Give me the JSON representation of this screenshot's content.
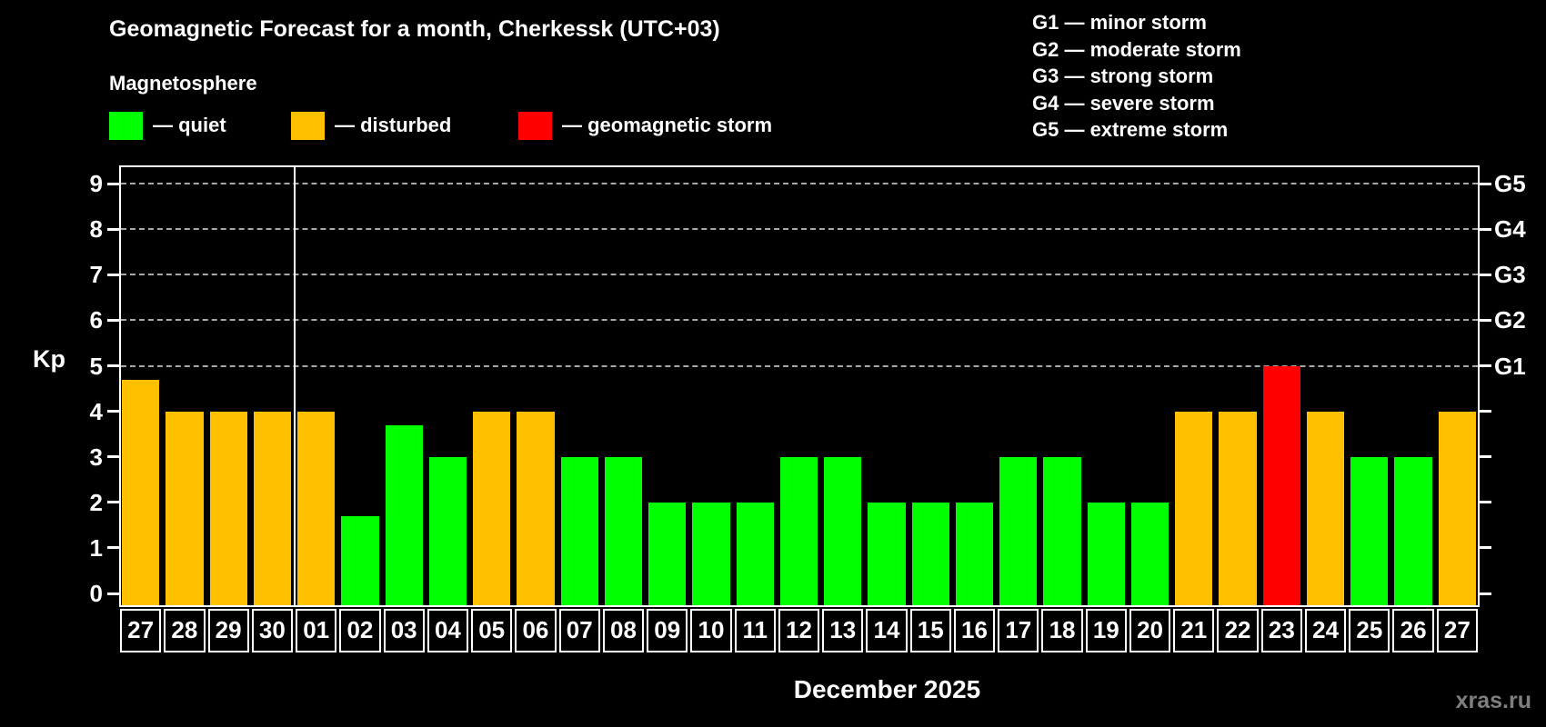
{
  "header": {
    "title": "Geomagnetic Forecast for a month, Cherkessk (UTC+03)",
    "subtitle": "Magnetosphere",
    "legend": [
      {
        "label": "— quiet",
        "color_key": "quiet"
      },
      {
        "label": "— disturbed",
        "color_key": "disturbed"
      },
      {
        "label": "— geomagnetic storm",
        "color_key": "storm"
      }
    ],
    "g_scale_legend": [
      "G1 — minor storm",
      "G2 — moderate storm",
      "G3 — strong storm",
      "G4 — severe storm",
      "G5 — extreme storm"
    ]
  },
  "colors": {
    "quiet": "#00ff00",
    "disturbed": "#ffc000",
    "storm": "#ff0000",
    "gridline": "#a8a8a8",
    "watermark": "#7f7f7f"
  },
  "chart_data": {
    "type": "bar",
    "title": "Geomagnetic Forecast for a month, Cherkessk (UTC+03)",
    "ylabel": "Kp",
    "xlabel": "December 2025",
    "ylim": [
      0,
      9
    ],
    "yticks": [
      0,
      1,
      2,
      3,
      4,
      5,
      6,
      7,
      8,
      9
    ],
    "grid": "dashed horizontal at Kp 5-9 only",
    "right_axis_labels": [
      {
        "label": "G1",
        "kp": 5
      },
      {
        "label": "G2",
        "kp": 6
      },
      {
        "label": "G3",
        "kp": 7
      },
      {
        "label": "G4",
        "kp": 8
      },
      {
        "label": "G5",
        "kp": 9
      }
    ],
    "month_separator_after_index": 3,
    "days": [
      {
        "day": "27",
        "kp": 4.7,
        "status": "disturbed"
      },
      {
        "day": "28",
        "kp": 4,
        "status": "disturbed"
      },
      {
        "day": "29",
        "kp": 4,
        "status": "disturbed"
      },
      {
        "day": "30",
        "kp": 4,
        "status": "disturbed"
      },
      {
        "day": "01",
        "kp": 4,
        "status": "disturbed"
      },
      {
        "day": "02",
        "kp": 1.7,
        "status": "quiet"
      },
      {
        "day": "03",
        "kp": 3.7,
        "status": "quiet"
      },
      {
        "day": "04",
        "kp": 3,
        "status": "quiet"
      },
      {
        "day": "05",
        "kp": 4,
        "status": "disturbed"
      },
      {
        "day": "06",
        "kp": 4,
        "status": "disturbed"
      },
      {
        "day": "07",
        "kp": 3,
        "status": "quiet"
      },
      {
        "day": "08",
        "kp": 3,
        "status": "quiet"
      },
      {
        "day": "09",
        "kp": 2,
        "status": "quiet"
      },
      {
        "day": "10",
        "kp": 2,
        "status": "quiet"
      },
      {
        "day": "11",
        "kp": 2,
        "status": "quiet"
      },
      {
        "day": "12",
        "kp": 3,
        "status": "quiet"
      },
      {
        "day": "13",
        "kp": 3,
        "status": "quiet"
      },
      {
        "day": "14",
        "kp": 2,
        "status": "quiet"
      },
      {
        "day": "15",
        "kp": 2,
        "status": "quiet"
      },
      {
        "day": "16",
        "kp": 2,
        "status": "quiet"
      },
      {
        "day": "17",
        "kp": 3,
        "status": "quiet"
      },
      {
        "day": "18",
        "kp": 3,
        "status": "quiet"
      },
      {
        "day": "19",
        "kp": 2,
        "status": "quiet"
      },
      {
        "day": "20",
        "kp": 2,
        "status": "quiet"
      },
      {
        "day": "21",
        "kp": 4,
        "status": "disturbed"
      },
      {
        "day": "22",
        "kp": 4,
        "status": "disturbed"
      },
      {
        "day": "23",
        "kp": 5,
        "status": "storm"
      },
      {
        "day": "24",
        "kp": 4,
        "status": "disturbed"
      },
      {
        "day": "25",
        "kp": 3,
        "status": "quiet"
      },
      {
        "day": "26",
        "kp": 3,
        "status": "quiet"
      },
      {
        "day": "27",
        "kp": 4,
        "status": "disturbed"
      }
    ]
  },
  "footer": {
    "watermark": "xras.ru"
  }
}
